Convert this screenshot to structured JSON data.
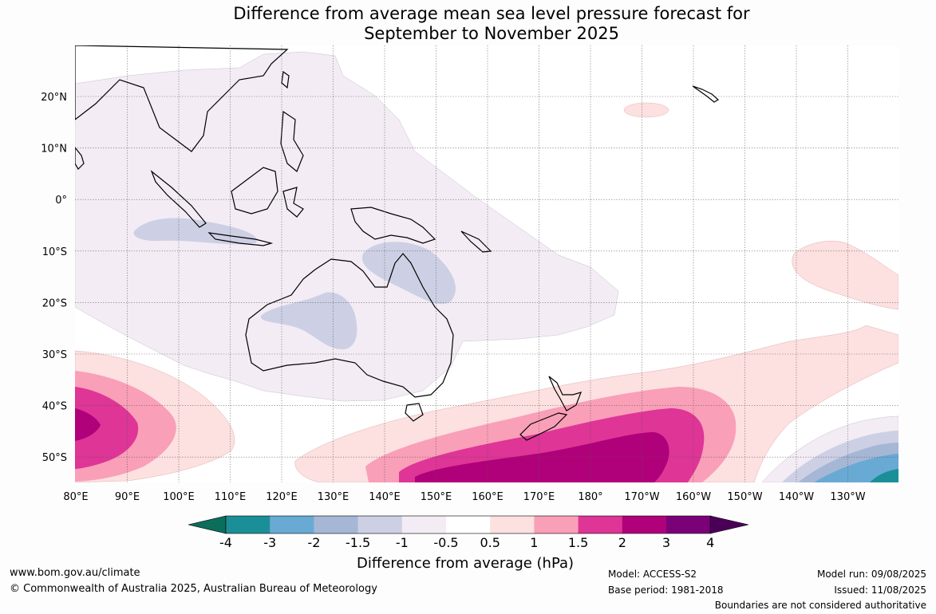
{
  "title_line1": "Difference from average mean sea level pressure forecast for",
  "title_line2": "September to November 2025",
  "lat_labels": [
    "20°N",
    "10°N",
    "0°",
    "10°S",
    "20°S",
    "30°S",
    "40°S",
    "50°S"
  ],
  "lon_labels": [
    "80°E",
    "90°E",
    "100°E",
    "110°E",
    "120°E",
    "130°E",
    "140°E",
    "150°E",
    "160°E",
    "170°E",
    "180°",
    "170°W",
    "160°W",
    "150°W",
    "140°W",
    "130°W"
  ],
  "colorbar": {
    "label": "Difference from average (hPa)",
    "ticks": [
      "-4",
      "-3",
      "-2",
      "-1.5",
      "-1",
      "-0.5",
      "0.5",
      "1",
      "1.5",
      "2",
      "3",
      "4"
    ],
    "colors": {
      "under": "#0b6e5b",
      "lt_-3": "#1b8f97",
      "-3_-2": "#69aad4",
      "-2_-1.5": "#a6b7d6",
      "-1.5_-1": "#cdd0e4",
      "-1_-0.5": "#f3ecf4",
      "-0.5_0.5": "#ffffff",
      "0.5_1": "#fde0e0",
      "1_1.5": "#f99fb8",
      "1.5_2": "#de3596",
      "2_3": "#b0017a",
      "3_4": "#7a0177",
      "over": "#4b0058"
    }
  },
  "footer": {
    "website": "www.bom.gov.au/climate",
    "copyright": "© Commonwealth of Australia 2025, Australian Bureau of Meteorology",
    "model": "Model: ACCESS-S2",
    "base_period": "Base period: 1981-2018",
    "model_run": "Model run: 09/08/2025",
    "issued": "Issued: 11/08/2025",
    "disclaimer": "Boundaries are not considered authoritative"
  }
}
